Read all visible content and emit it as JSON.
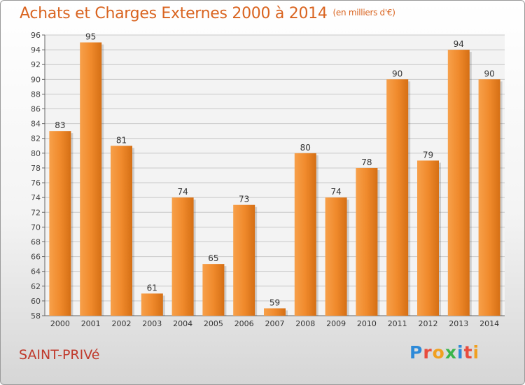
{
  "title": "Achats et Charges Externes 2000 à 2014",
  "unit": "(en milliers d'€)",
  "commune": "SAINT-PRIVé",
  "logo": {
    "letters": [
      "P",
      "r",
      "o",
      "x",
      "i",
      "t",
      "i"
    ],
    "colors": [
      "#2e8ad8",
      "#e84c3d",
      "#f0a020",
      "#3ab54a",
      "#2e8ad8",
      "#e84c3d",
      "#f0a020"
    ]
  },
  "colors": {
    "bar": "#f08a2c",
    "title": "#d96420",
    "commune": "#c0392b"
  },
  "chart_data": {
    "type": "bar",
    "categories": [
      "2000",
      "2001",
      "2002",
      "2003",
      "2004",
      "2005",
      "2006",
      "2007",
      "2008",
      "2009",
      "2010",
      "2011",
      "2012",
      "2013",
      "2014"
    ],
    "values": [
      83,
      95,
      81,
      61,
      74,
      65,
      73,
      59,
      80,
      74,
      78,
      90,
      79,
      94,
      90
    ],
    "yticks": [
      58,
      60,
      62,
      64,
      66,
      68,
      70,
      72,
      74,
      76,
      78,
      80,
      82,
      84,
      86,
      88,
      90,
      92,
      94,
      96
    ],
    "ylim": [
      58,
      96
    ],
    "grid": true,
    "legend": "none"
  }
}
